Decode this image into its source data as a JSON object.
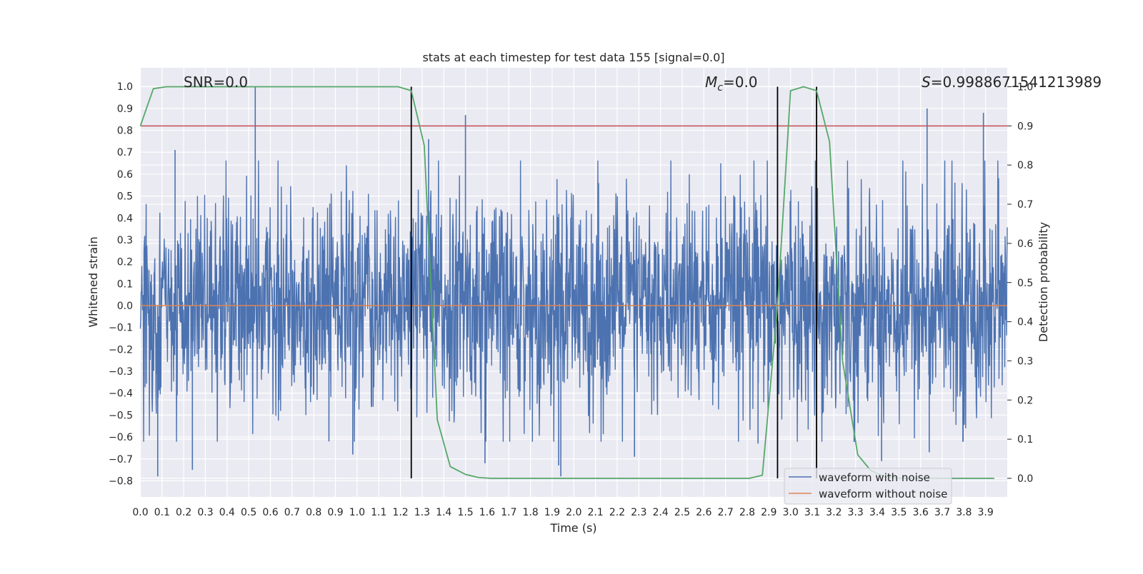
{
  "chart_data": {
    "type": "line",
    "title": "stats at each timestep for test data 155 [signal=0.0]",
    "xlabel": "Time (s)",
    "ylabel": "Whitened strain",
    "y2label": "Detection probability",
    "xlim": [
      0.0,
      4.0
    ],
    "ylim": [
      -0.87,
      1.09
    ],
    "y2lim": [
      -0.047,
      1.05
    ],
    "grid": true,
    "x_ticks": [
      "0.0",
      "0.1",
      "0.2",
      "0.3",
      "0.4",
      "0.5",
      "0.6",
      "0.7",
      "0.8",
      "0.9",
      "1.0",
      "1.1",
      "1.2",
      "1.3",
      "1.4",
      "1.5",
      "1.6",
      "1.7",
      "1.8",
      "1.9",
      "2.0",
      "2.1",
      "2.2",
      "2.3",
      "2.4",
      "2.5",
      "2.6",
      "2.7",
      "2.8",
      "2.9",
      "3.0",
      "3.1",
      "3.2",
      "3.3",
      "3.4",
      "3.5",
      "3.6",
      "3.7",
      "3.8",
      "3.9"
    ],
    "y_ticks": [
      "1.0",
      "0.9",
      "0.8",
      "0.7",
      "0.6",
      "0.5",
      "0.4",
      "0.3",
      "0.2",
      "0.1",
      "0.0",
      "−0.1",
      "−0.2",
      "−0.3",
      "−0.4",
      "−0.5",
      "−0.6",
      "−0.7",
      "−0.8"
    ],
    "y2_ticks": [
      "1.0",
      "0.9",
      "0.8",
      "0.7",
      "0.6",
      "0.5",
      "0.4",
      "0.3",
      "0.2",
      "0.1",
      "0.0"
    ],
    "annotations": {
      "snr": "SNR=0.0",
      "mc_symbol": "M",
      "mc_sub": "c",
      "mc_value": "=0.0",
      "s_symbol": "S",
      "s_value": "=0.9988671541213989"
    },
    "legend": {
      "position": "lower-right",
      "items": [
        {
          "label": "waveform with noise",
          "color": "#4c72b0"
        },
        {
          "label": "waveform without noise",
          "color": "#dd8452"
        }
      ]
    },
    "series": [
      {
        "name": "waveform with noise",
        "axis": "left",
        "color": "#4c72b0",
        "kind": "noise",
        "amplitude_sigma": 0.25,
        "spikes": [
          {
            "x": 0.53,
            "y": 1.0
          },
          {
            "x": 1.5,
            "y": 0.87
          },
          {
            "x": 3.63,
            "y": 0.9
          },
          {
            "x": 3.89,
            "y": 0.88
          },
          {
            "x": 0.16,
            "y": 0.71
          },
          {
            "x": 1.33,
            "y": 0.76
          },
          {
            "x": 0.08,
            "y": -0.78
          },
          {
            "x": 1.94,
            "y": -0.78
          },
          {
            "x": 1.93,
            "y": -0.73
          },
          {
            "x": 0.24,
            "y": -0.75
          },
          {
            "x": 3.42,
            "y": -0.71
          },
          {
            "x": 0.98,
            "y": -0.68
          },
          {
            "x": 1.59,
            "y": -0.72
          },
          {
            "x": 2.28,
            "y": -0.69
          },
          {
            "x": 0.87,
            "y": -0.62
          },
          {
            "x": 3.64,
            "y": -0.67
          },
          {
            "x": 2.85,
            "y": -0.63
          }
        ]
      },
      {
        "name": "waveform without noise",
        "axis": "left",
        "color": "#dd8452",
        "x": [
          0.0,
          4.0
        ],
        "y": [
          0.0,
          0.0
        ]
      },
      {
        "name": "",
        "axis": "right",
        "color": "#55a868",
        "x": [
          0.0,
          0.06,
          0.12,
          0.5,
          1.0,
          1.19,
          1.25,
          1.31,
          1.37,
          1.43,
          1.5,
          1.56,
          1.62,
          1.7,
          2.0,
          2.5,
          2.81,
          2.87,
          2.94,
          3.0,
          3.06,
          3.12,
          3.18,
          3.24,
          3.31,
          3.37,
          3.43,
          3.5,
          3.7,
          3.94
        ],
        "y": [
          0.9,
          0.995,
          1.0,
          1.0,
          1.0,
          1.0,
          0.99,
          0.85,
          0.15,
          0.03,
          0.01,
          0.002,
          0.0,
          0.0,
          0.0,
          0.0,
          0.0,
          0.008,
          0.44,
          0.99,
          1.0,
          0.99,
          0.86,
          0.3,
          0.06,
          0.02,
          0.005,
          0.0,
          0.0,
          0.0
        ]
      }
    ],
    "threshold": {
      "axis": "right",
      "y": 0.9,
      "color": "#c44e52"
    },
    "vlines": {
      "x": [
        1.25,
        2.94,
        3.12
      ],
      "color": "#000000"
    }
  }
}
